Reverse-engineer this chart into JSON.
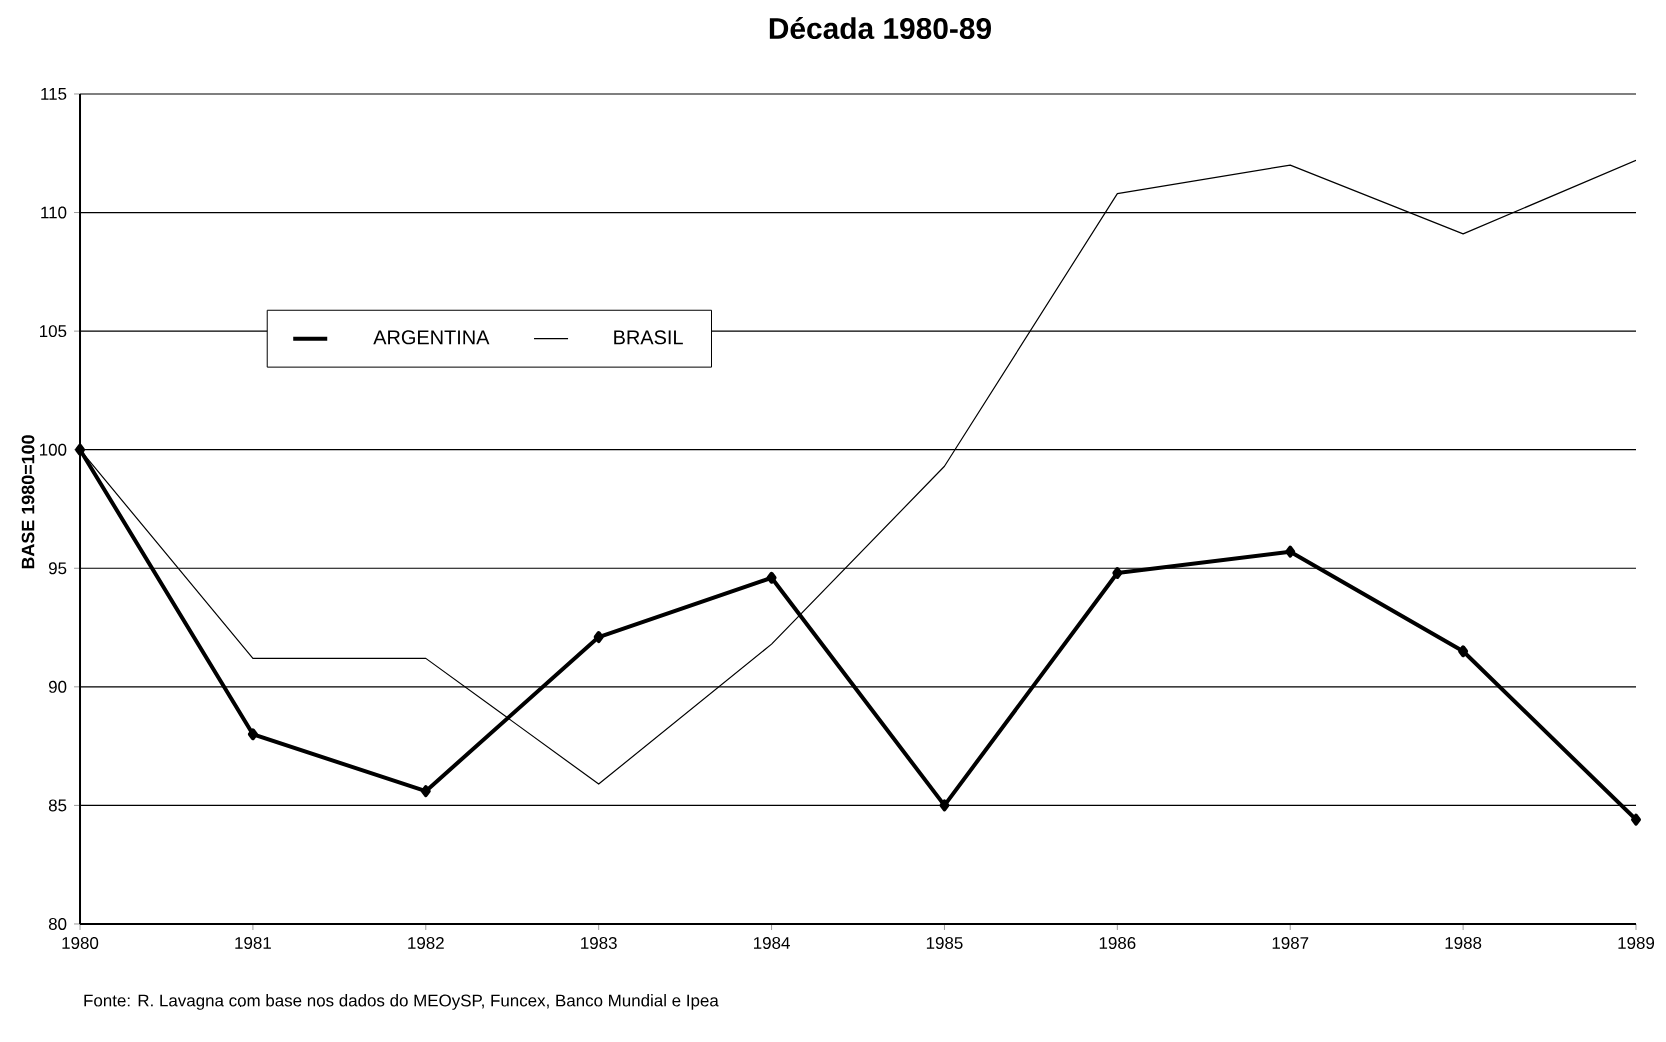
{
  "chart_data": {
    "type": "line",
    "title": "Década 1980-89",
    "ylabel": "BASE 1980=100",
    "x": [
      1980,
      1981,
      1982,
      1983,
      1984,
      1985,
      1986,
      1987,
      1988,
      1989
    ],
    "series": [
      {
        "name": "ARGENTINA",
        "color": "#000000",
        "marker": "diamond",
        "values": [
          100,
          88.0,
          85.6,
          92.1,
          94.6,
          85.0,
          94.8,
          95.7,
          91.5,
          84.4
        ]
      },
      {
        "name": "BRASIL",
        "color": "#000000",
        "marker": "none",
        "values": [
          100,
          91.2,
          91.2,
          85.9,
          91.8,
          99.3,
          110.8,
          112.0,
          109.1,
          112.2
        ]
      }
    ],
    "xlim": [
      1980,
      1989
    ],
    "xticks": [
      1980,
      1981,
      1982,
      1983,
      1984,
      1985,
      1986,
      1987,
      1988,
      1989
    ],
    "ylim": [
      80,
      115
    ],
    "yticks": [
      80,
      85,
      90,
      95,
      100,
      105,
      110,
      115
    ],
    "grid": "y",
    "legend": "top left",
    "line_style": "solid",
    "annotations": [
      "Fonte: R. Lavagna com base nos dados do MEOySP, Funcex, Banco Mundial e Ipea"
    ]
  }
}
